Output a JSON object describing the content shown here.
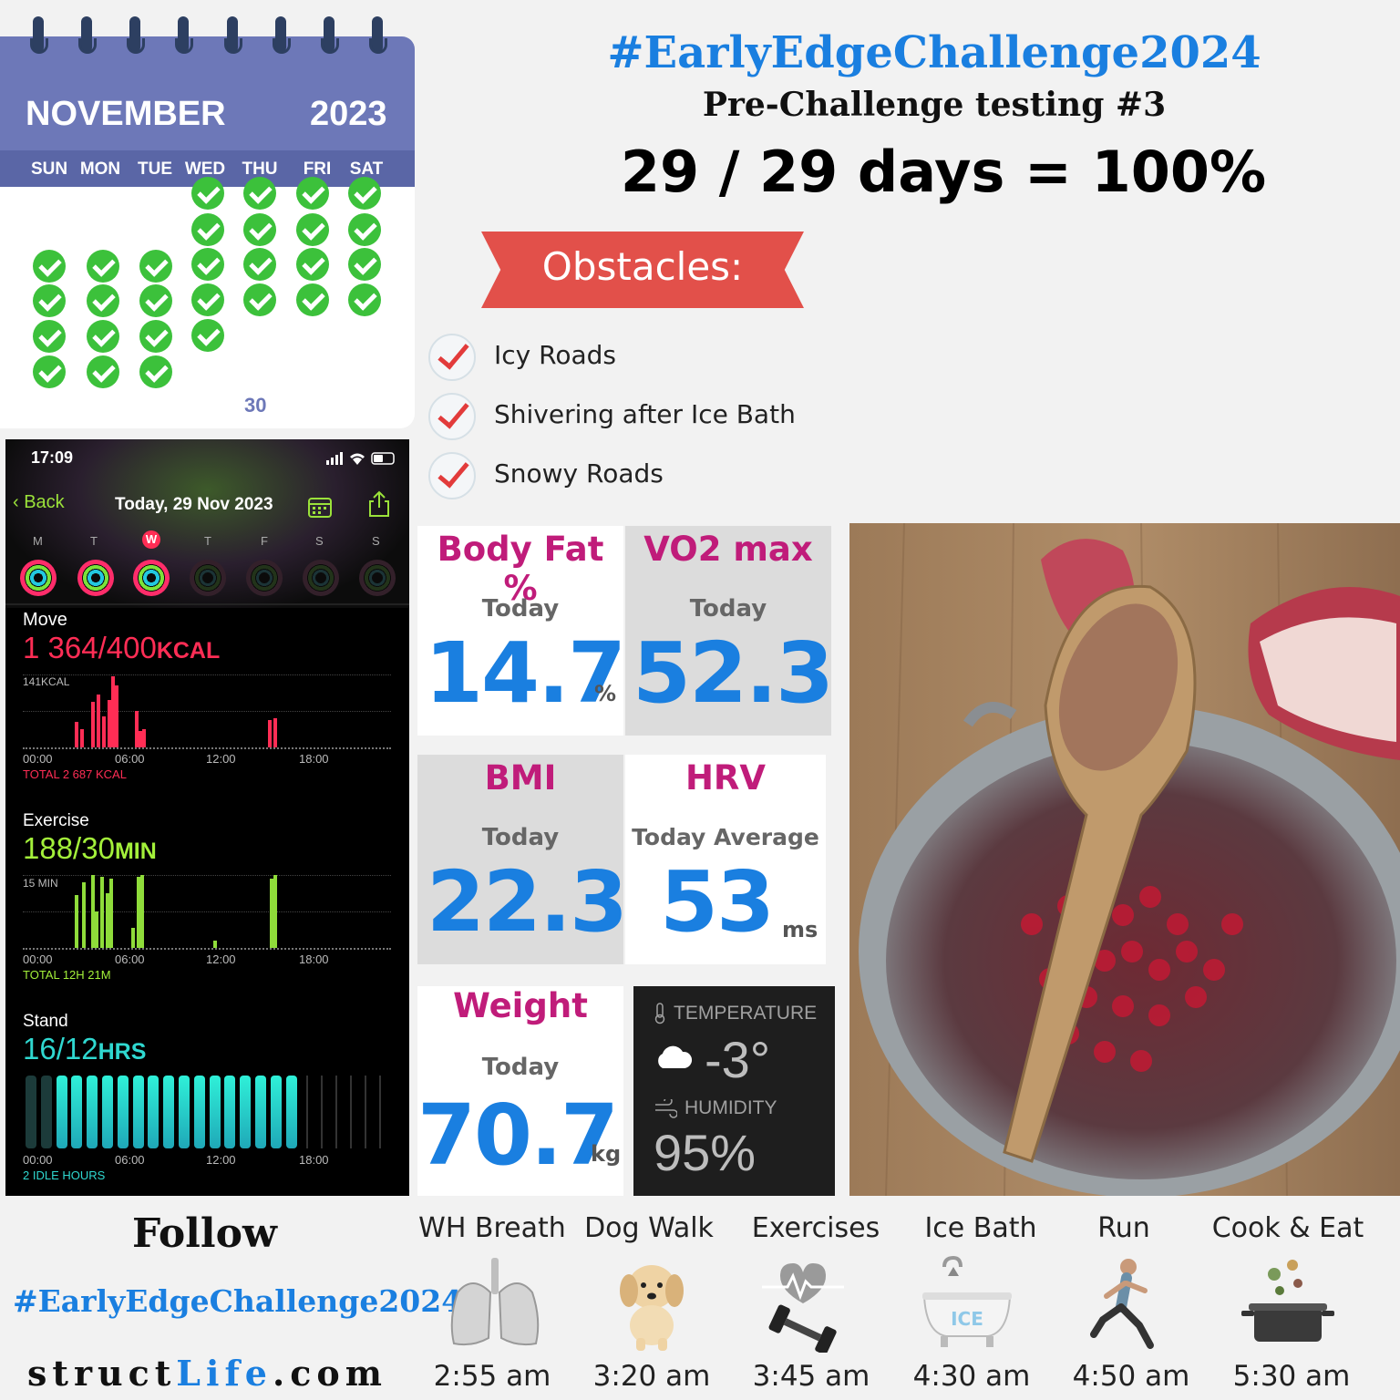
{
  "calendar": {
    "month": "NOVEMBER",
    "year": "2023",
    "weekdays": [
      "SUN",
      "MON",
      "TUE",
      "WED",
      "THU",
      "FRI",
      "SAT"
    ],
    "completed_days": 29,
    "day_30_label": "30"
  },
  "challenge": {
    "hashtag": "#EarlyEdgeChallenge2024",
    "subtitle": "Pre-Challenge testing #3",
    "days_stat": "29 / 29 days = 100%"
  },
  "obstacles": {
    "label": "Obstacles:",
    "items": [
      "Icy Roads",
      "Shivering after Ice Bath",
      "Snowy Roads"
    ]
  },
  "phone": {
    "time": "17:09",
    "back_label": "Back",
    "date_title": "Today, 29 Nov 2023",
    "week_letters": [
      "M",
      "T",
      "W",
      "T",
      "F",
      "S",
      "S"
    ],
    "move": {
      "label": "Move",
      "value": "1 364/400",
      "unit": "KCAL",
      "scale_label": "141KCAL",
      "total": "TOTAL 2 687 KCAL"
    },
    "exercise": {
      "label": "Exercise",
      "value": "188/30",
      "unit": "MIN",
      "scale_label": "15 MIN",
      "total": "TOTAL 12H 21M"
    },
    "stand": {
      "label": "Stand",
      "value": "16/12",
      "unit": "HRS",
      "total": "2 IDLE HOURS"
    },
    "time_ticks": [
      "00:00",
      "06:00",
      "12:00",
      "18:00"
    ],
    "colors": {
      "move": "#ff2d55",
      "exercise": "#a3f03a",
      "stand": "#2fd8d0"
    }
  },
  "metrics": {
    "body_fat": {
      "title": "Body Fat %",
      "sub": "Today",
      "value": "14.7",
      "unit": "%"
    },
    "vo2": {
      "title": "VO2 max",
      "sub": "Today",
      "value": "52.3"
    },
    "bmi": {
      "title": "BMI",
      "sub": "Today",
      "value": "22.3"
    },
    "hrv": {
      "title": "HRV",
      "sub": "Today Average",
      "value": "53",
      "unit": "ms"
    },
    "weight": {
      "title": "Weight",
      "sub": "Today",
      "value": "70.7",
      "unit": "kg"
    }
  },
  "weather": {
    "temperature_label": "TEMPERATURE",
    "temperature": "-3°",
    "humidity_label": "HUMIDITY",
    "humidity": "95%"
  },
  "footer": {
    "follow": "Follow",
    "hashtag": "#EarlyEdgeChallenge2024",
    "site_part1": "struct",
    "site_part2": "Life",
    "site_part3": ".com"
  },
  "routine": [
    {
      "label": "WH Breath",
      "time": "2:55 am",
      "icon": "lungs-icon"
    },
    {
      "label": "Dog Walk",
      "time": "3:20 am",
      "icon": "puppy-icon"
    },
    {
      "label": "Exercises",
      "time": "3:45 am",
      "icon": "dumbbell-heart-icon"
    },
    {
      "label": "Ice Bath",
      "time": "4:30 am",
      "icon": "bathtub-icon"
    },
    {
      "label": "Run",
      "time": "4:50 am",
      "icon": "runner-icon"
    },
    {
      "label": "Cook & Eat",
      "time": "5:30 am",
      "icon": "cooking-pot-icon"
    }
  ]
}
